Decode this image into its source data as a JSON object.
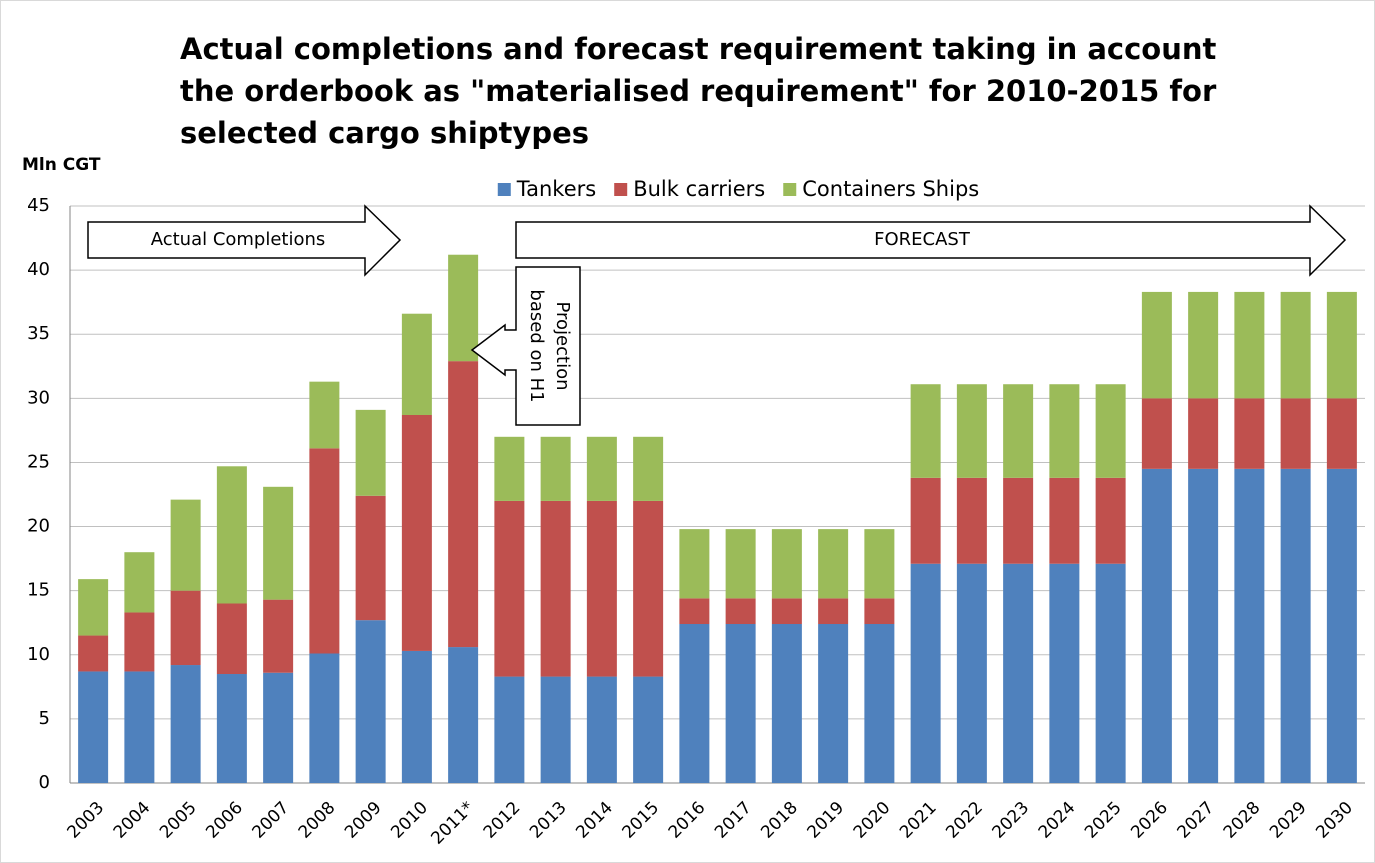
{
  "chart_data": {
    "type": "stacked_bar",
    "title": "Actual completions and forecast requirement taking in account the orderbook as \"materialised requirement\" for 2010-2015 for selected cargo shiptypes",
    "y_label": "Mln CGT",
    "annotations": {
      "actual": "Actual Completions",
      "forecast": "FORECAST",
      "projection": [
        "Projection",
        "based on H1"
      ]
    },
    "categories": [
      "2003",
      "2004",
      "2005",
      "2006",
      "2007",
      "2008",
      "2009",
      "2010",
      "2011*",
      "2012",
      "2013",
      "2014",
      "2015",
      "2016",
      "2017",
      "2018",
      "2019",
      "2020",
      "2021",
      "2022",
      "2023",
      "2024",
      "2025",
      "2026",
      "2027",
      "2028",
      "2029",
      "2030"
    ],
    "series": [
      {
        "name": "Tankers",
        "color": "#4f81bd",
        "values": [
          8.7,
          8.7,
          9.2,
          8.5,
          8.6,
          10.1,
          12.7,
          10.3,
          10.6,
          8.3,
          8.3,
          8.3,
          8.3,
          12.4,
          12.4,
          12.4,
          12.4,
          12.4,
          17.1,
          17.1,
          17.1,
          17.1,
          17.1,
          24.5,
          24.5,
          24.5,
          24.5,
          24.5
        ]
      },
      {
        "name": "Bulk carriers",
        "color": "#c0504d",
        "values": [
          2.8,
          4.6,
          5.8,
          5.5,
          5.7,
          16.0,
          9.7,
          18.4,
          22.3,
          13.7,
          13.7,
          13.7,
          13.7,
          2.0,
          2.0,
          2.0,
          2.0,
          2.0,
          6.7,
          6.7,
          6.7,
          6.7,
          6.7,
          5.5,
          5.5,
          5.5,
          5.5,
          5.5
        ]
      },
      {
        "name": "Containers Ships",
        "color": "#9bbb59",
        "values": [
          4.4,
          4.7,
          7.1,
          10.7,
          8.8,
          5.2,
          6.7,
          7.9,
          8.3,
          5.0,
          5.0,
          5.0,
          5.0,
          5.4,
          5.4,
          5.4,
          5.4,
          5.4,
          7.3,
          7.3,
          7.3,
          7.3,
          7.3,
          8.3,
          8.3,
          8.3,
          8.3,
          8.3
        ]
      }
    ],
    "ylim": [
      0,
      45
    ],
    "yticks": [
      0,
      5,
      10,
      15,
      20,
      25,
      30,
      35,
      40,
      45
    ],
    "grid": true,
    "legend": "top"
  }
}
